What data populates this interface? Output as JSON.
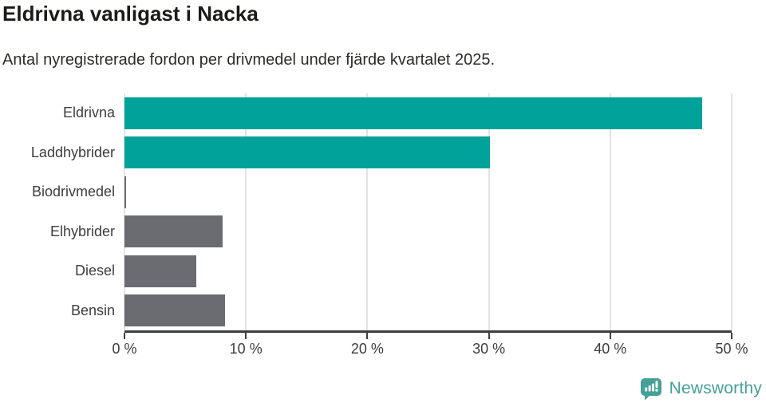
{
  "header": {
    "title": "Eldrivna vanligast i Nacka",
    "subtitle": "Antal nyregistrerade fordon per drivmedel under fjärde kvartalet 2025."
  },
  "chart_data": {
    "type": "bar",
    "orientation": "horizontal",
    "title": "Eldrivna vanligast i Nacka",
    "subtitle": "Antal nyregistrerade fordon per drivmedel under fjärde kvartalet 2025.",
    "categories": [
      "Eldrivna",
      "Laddhybrider",
      "Biodrivmedel",
      "Elhybrider",
      "Diesel",
      "Bensin"
    ],
    "values": [
      47.6,
      30.1,
      0.1,
      8.1,
      5.9,
      8.3
    ],
    "unit": "%",
    "xlabel": "",
    "ylabel": "",
    "xlim": [
      0,
      50
    ],
    "xticks": [
      0,
      10,
      20,
      30,
      40,
      50
    ],
    "xtick_suffix": " %",
    "grid": true,
    "legend": false,
    "bar_colors": [
      "#00a29a",
      "#00a29a",
      "#6b6c71",
      "#6b6c71",
      "#6b6c71",
      "#6b6c71"
    ]
  },
  "colors": {
    "accent_teal": "#00a29a",
    "bar_gray": "#6b6c71",
    "brand": "#45a09a",
    "axis": "#3e3e3e",
    "grid": "#e3e3e3",
    "label_text": "#3d3d3d",
    "title_text": "#1b1b19"
  },
  "footer": {
    "brand": "Newsworthy"
  }
}
